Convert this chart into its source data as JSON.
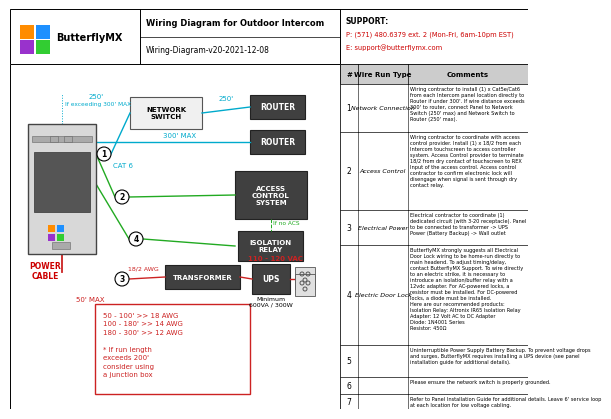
{
  "title": "Wiring Diagram for Outdoor Intercom",
  "subtitle": "Wiring-Diagram-v20-2021-12-08",
  "logo_text": "ButterflyMX",
  "support_label": "SUPPORT:",
  "support_phone": "P: (571) 480.6379 ext. 2 (Mon-Fri, 6am-10pm EST)",
  "support_email": "E: support@butterflymx.com",
  "wire_run_header": "Wire Run Type",
  "comments_header": "Comments",
  "table_rows": [
    {
      "num": "1",
      "type": "Network Connection",
      "comment": "Wiring contractor to install (1) x Cat5e/Cat6\nfrom each Intercom panel location directly to\nRouter if under 300'. If wire distance exceeds\n300' to router, connect Panel to Network\nSwitch (250' max) and Network Switch to\nRouter (250' max)."
    },
    {
      "num": "2",
      "type": "Access Control",
      "comment": "Wiring contractor to coordinate with access\ncontrol provider. Install (1) x 18/2 from each\nIntercom touchscreen to access controller\nsystem. Access Control provider to terminate\n18/2 from dry contact of touchscreen to REX\nInput of the access control. Access control\ncontractor to confirm electronic lock will\ndisengage when signal is sent through dry\ncontact relay."
    },
    {
      "num": "3",
      "type": "Electrical Power",
      "comment": "Electrical contractor to coordinate (1)\ndedicated circuit (with 3-20 receptacle). Panel\nto be connected to transformer -> UPS\nPower (Battery Backup) -> Wall outlet"
    },
    {
      "num": "4",
      "type": "Electric Door Lock",
      "comment": "ButterflyMX strongly suggests all Electrical\nDoor Lock wiring to be home-run directly to\nmain headend. To adjust timing/delay,\ncontact ButterflyMX Support. To wire directly\nto an electric strike, it is necessary to\nintroduce an isolation/buffer relay with a\n12vdc adapter. For AC-powered locks, a\nresistor must be installed. For DC-powered\nlocks, a diode must be installed.\nHere are our recommended products:\nIsolation Relay: Altronix IR65 Isolation Relay\nAdapter: 12 Volt AC to DC Adapter\nDiode: 1N4001 Series\nResistor: 450Ω"
    },
    {
      "num": "5",
      "type": "",
      "comment": "Uninterruptible Power Supply Battery Backup. To prevent voltage drops\nand surges, ButterflyMX requires installing a UPS device (see panel\ninstallation guide for additional details)."
    },
    {
      "num": "6",
      "type": "",
      "comment": "Please ensure the network switch is properly grounded."
    },
    {
      "num": "7",
      "type": "",
      "comment": "Refer to Panel Installation Guide for additional details. Leave 6' service loop\nat each location for low voltage cabling."
    }
  ],
  "node_labels": {
    "network_switch": "NETWORK\nSWITCH",
    "router1": "ROUTER",
    "router2": "ROUTER",
    "acs": "ACCESS\nCONTROL\nSYSTEM",
    "isolation_relay": "ISOLATION\nRELAY",
    "transformer": "TRANSFORMER",
    "ups": "UPS",
    "power_cable": "POWER\nCABLE"
  },
  "wire_labels": {
    "cat6": "CAT 6",
    "250_1": "250'",
    "250_2": "250'",
    "300max": "300' MAX",
    "if_exceeding": "If exceeding 300' MAX",
    "18_2awg": "18/2 AWG",
    "50max": "50' MAX",
    "110_120": "110 - 120 VAC",
    "minimum": "Minimum\n600VA / 300W",
    "if_no_acs": "If no ACS"
  },
  "awg_box_text": "50 - 100' >> 18 AWG\n100 - 180' >> 14 AWG\n180 - 300' >> 12 AWG\n\n* If run length\nexceeds 200'\nconsider using\na junction box",
  "colors": {
    "cyan": "#00aacc",
    "green": "#22aa22",
    "red_wire": "#cc2222",
    "red_text": "#cc0000",
    "awg_box_border": "#cc2222",
    "awg_box_text": "#cc2222",
    "node_fill": "#404040",
    "node_border": "#222222",
    "node_text": "#ffffff",
    "light_node_fill": "#f0f0f0",
    "light_node_border": "#555555",
    "light_node_text": "#000000",
    "panel_fill": "#d0d0d0",
    "panel_border": "#444444",
    "header_gray": "#cccccc",
    "table_col_bg": "#cccccc",
    "logo_orange": "#FF8C00",
    "logo_blue": "#1E90FF",
    "logo_green": "#32CD32",
    "logo_purple": "#9932CC",
    "logo_red": "#DC143C",
    "logo_yellow": "#FFD700"
  }
}
